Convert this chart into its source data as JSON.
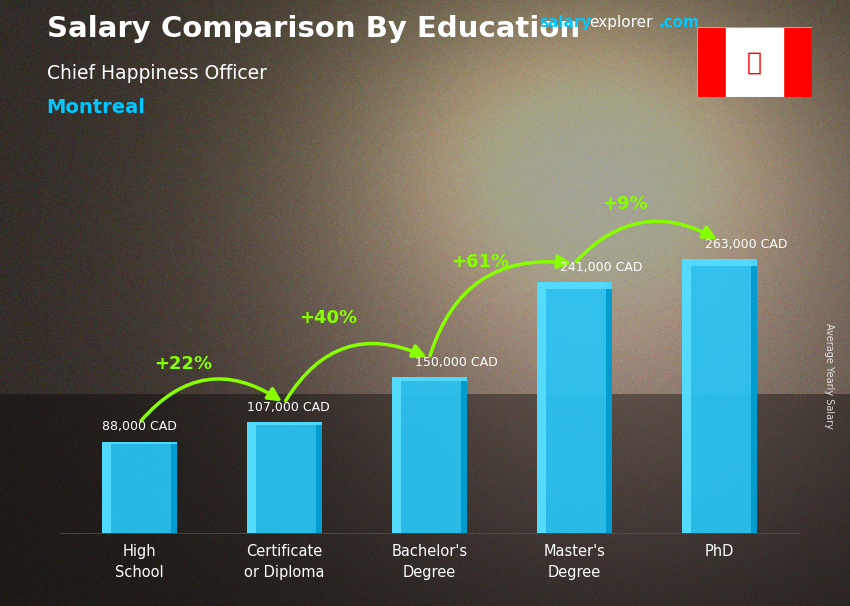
{
  "title_main": "Salary Comparison By Education",
  "title_sub": "Chief Happiness Officer",
  "title_city": "Montreal",
  "ylabel": "Average Yearly Salary",
  "categories": [
    "High\nSchool",
    "Certificate\nor Diploma",
    "Bachelor's\nDegree",
    "Master's\nDegree",
    "PhD"
  ],
  "values": [
    88000,
    107000,
    150000,
    241000,
    263000
  ],
  "value_labels": [
    "88,000 CAD",
    "107,000 CAD",
    "150,000 CAD",
    "241,000 CAD",
    "263,000 CAD"
  ],
  "pct_labels": [
    "+22%",
    "+40%",
    "+61%",
    "+9%"
  ],
  "bar_color_main": "#29c5f6",
  "bar_color_light": "#55ddff",
  "bar_color_dark": "#0099cc",
  "bar_color_edge": "#007aaa",
  "text_color_white": "#ffffff",
  "text_color_cyan": "#00c8ff",
  "text_color_green": "#88ff00",
  "arrow_color": "#88ff00",
  "bg_dark": "#2a2a35",
  "ylim": [
    0,
    320000
  ],
  "figsize": [
    8.5,
    6.06
  ],
  "dpi": 100
}
